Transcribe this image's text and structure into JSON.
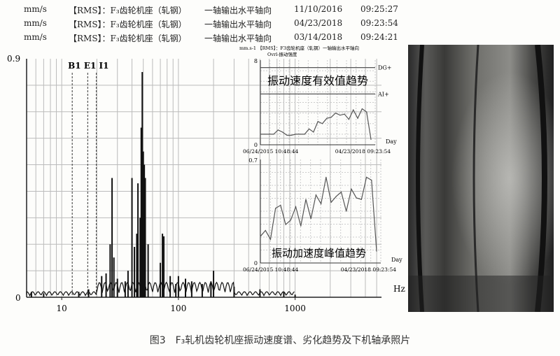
{
  "header_rows": [
    {
      "unit": "mm/s",
      "label": "【RMS】：F₃齿轮机座（轧钢）",
      "direction": "一轴输出水平轴向",
      "date": "11/10/2016",
      "time": "09:25:27"
    },
    {
      "unit": "mm/s",
      "label": "【RMS】：F₃齿轮机座（轧钢）",
      "direction": "一轴输出水平轴向",
      "date": "04/23/2018",
      "time": "09:23:54"
    },
    {
      "unit": "mm/s",
      "label": "【RMS】：F₃齿轮机座（轧钢）",
      "direction": "一轴输出水平轴向",
      "date": "03/14/2018",
      "time": "09:24:21"
    }
  ],
  "caption": "图3　F₃轧机齿轮机座振动速度谱、劣化趋势及下机轴承照片",
  "chart_data": [
    {
      "type": "line",
      "xscale": "log",
      "xlabel": "Hz",
      "ylim": [
        0,
        0.9
      ],
      "xlim": [
        5,
        5500
      ],
      "y_ticks": [
        "0",
        "0.9"
      ],
      "x_ticks": [
        {
          "value": 10,
          "label": "10"
        },
        {
          "value": 100,
          "label": "100"
        },
        {
          "value": 1000,
          "label": "1000"
        }
      ],
      "grid": true,
      "markers": [
        {
          "label": "B1",
          "freq": 12.3
        },
        {
          "label": "E1",
          "freq": 16.7
        },
        {
          "label": "I1",
          "freq": 19.8
        }
      ],
      "marker_text": "B1 E1 I1",
      "peaks": [
        [
          5.5,
          0.02
        ],
        [
          7,
          0.015
        ],
        [
          14,
          0.02
        ],
        [
          17,
          0.03
        ],
        [
          22,
          0.08
        ],
        [
          24,
          0.09
        ],
        [
          26,
          0.2
        ],
        [
          27,
          0.45
        ],
        [
          28,
          0.15
        ],
        [
          30,
          0.07
        ],
        [
          35,
          0.06
        ],
        [
          37,
          0.1
        ],
        [
          40,
          0.45
        ],
        [
          42,
          0.19
        ],
        [
          44,
          0.24
        ],
        [
          45,
          0.43
        ],
        [
          47,
          0.3
        ],
        [
          48,
          0.64
        ],
        [
          49,
          0.85
        ],
        [
          50,
          0.55
        ],
        [
          51,
          0.5
        ],
        [
          52,
          0.45
        ],
        [
          55,
          0.2
        ],
        [
          70,
          0.13
        ],
        [
          73,
          0.24
        ],
        [
          75,
          0.23
        ],
        [
          85,
          0.08
        ],
        [
          95,
          0.05
        ],
        [
          100,
          0.08
        ],
        [
          115,
          0.07
        ],
        [
          130,
          0.06
        ],
        [
          160,
          0.05
        ],
        [
          190,
          0.06
        ],
        [
          200,
          0.1
        ],
        [
          300,
          0.04
        ],
        [
          500,
          0.03
        ],
        [
          800,
          0.02
        ],
        [
          1000,
          0.01
        ]
      ]
    },
    {
      "type": "line",
      "title": "mm.s-1 【RMS】：F3齿轮机座（轧钢）一轴输出水平轴向",
      "subtitle": "Ovrl-振动强度",
      "annotation": "振动速度有效值趋势",
      "ylim": [
        0,
        8
      ],
      "y_ticks": [
        "0",
        "8"
      ],
      "xlabel": "Day",
      "x_start": "06/24/2015  10:48:44",
      "x_end": "04/23/2018  09:23:54",
      "thresholds": [
        {
          "label": "DG+",
          "value": 7.3
        },
        {
          "label": "AI+",
          "value": 4.8
        }
      ],
      "values": [
        1.0,
        1.0,
        1.0,
        1.0,
        1.4,
        1.2,
        0.9,
        0.9,
        1.0,
        1.0,
        1.0,
        1.5,
        1.2,
        2.2,
        2.0,
        2.5,
        2.6,
        3.0,
        2.8,
        2.9,
        2.4,
        3.3,
        2.5,
        3.4,
        3.1,
        0.5
      ]
    },
    {
      "type": "line",
      "annotation": "振动加速度峰值趋势",
      "ylim": [
        0,
        0.7
      ],
      "y_ticks": [
        "0",
        "0.7"
      ],
      "xlabel": "Day",
      "x_start": "06/24/2015  10:48:44",
      "x_end": "04/23/2018  09:23:54",
      "values": [
        0.18,
        0.22,
        0.16,
        0.37,
        0.39,
        0.26,
        0.29,
        0.38,
        0.25,
        0.43,
        0.3,
        0.46,
        0.4,
        0.58,
        0.41,
        0.45,
        0.48,
        0.35,
        0.5,
        0.44,
        0.43,
        0.58,
        0.56,
        0.08
      ]
    }
  ],
  "photo": {
    "subject": "bearing-photo"
  }
}
